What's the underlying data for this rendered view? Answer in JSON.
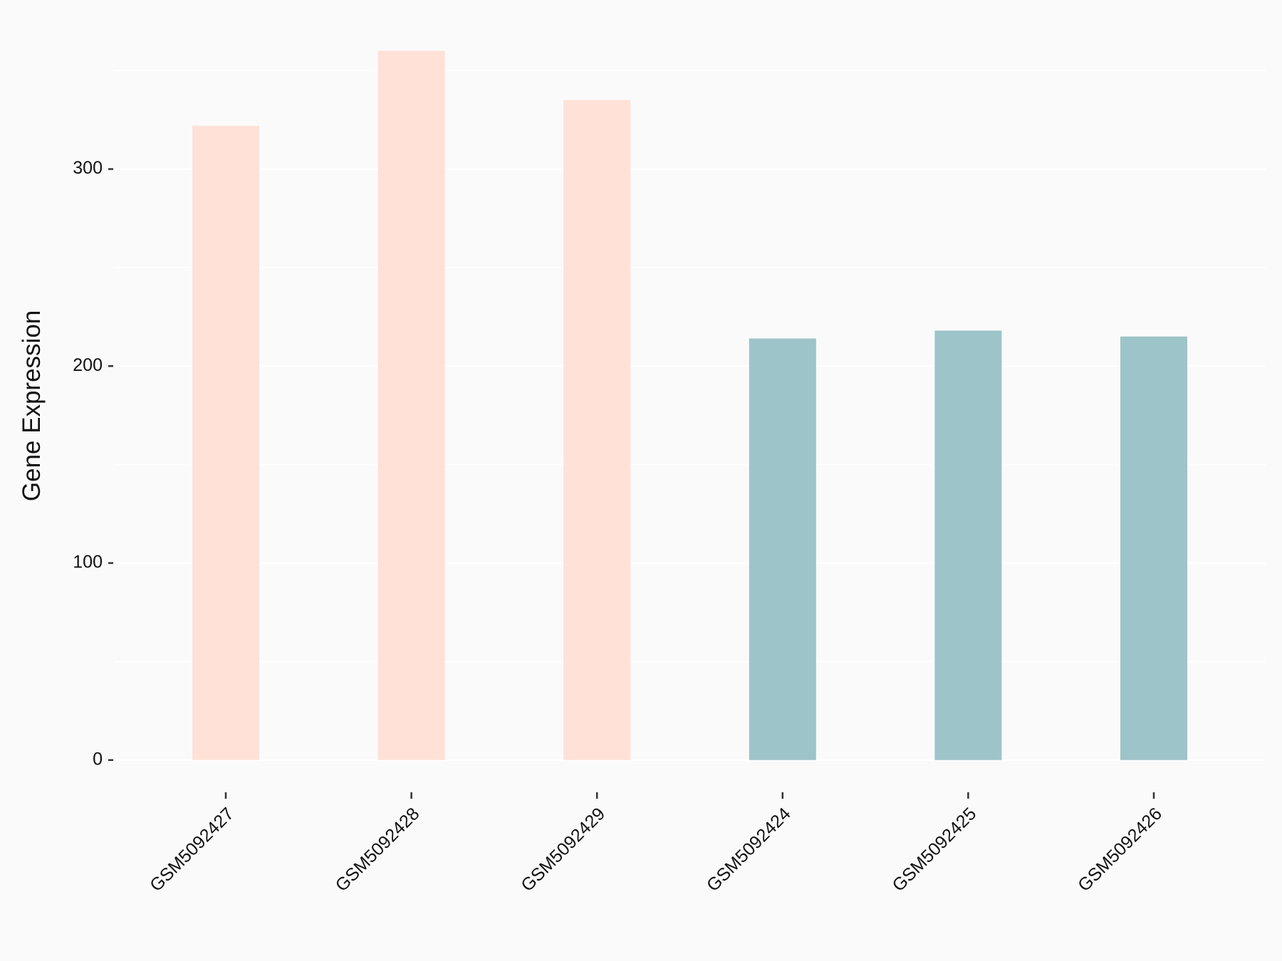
{
  "chart_data": {
    "type": "bar",
    "y_label": "Gene Expression",
    "categories": [
      "GSM5092427",
      "GSM5092428",
      "GSM5092429",
      "GSM5092424",
      "GSM5092425",
      "GSM5092426"
    ],
    "values": [
      322,
      360,
      335,
      214,
      218,
      215
    ],
    "colors": [
      "#ffe1d7",
      "#ffe1d7",
      "#ffe1d7",
      "#9dc4c8",
      "#9dc4c8",
      "#9dc4c8"
    ],
    "ylim": [
      -16,
      365
    ],
    "yticks": [
      0,
      100,
      200,
      300
    ],
    "minor_yticks": [
      50,
      150,
      250,
      350
    ],
    "grid": true
  }
}
